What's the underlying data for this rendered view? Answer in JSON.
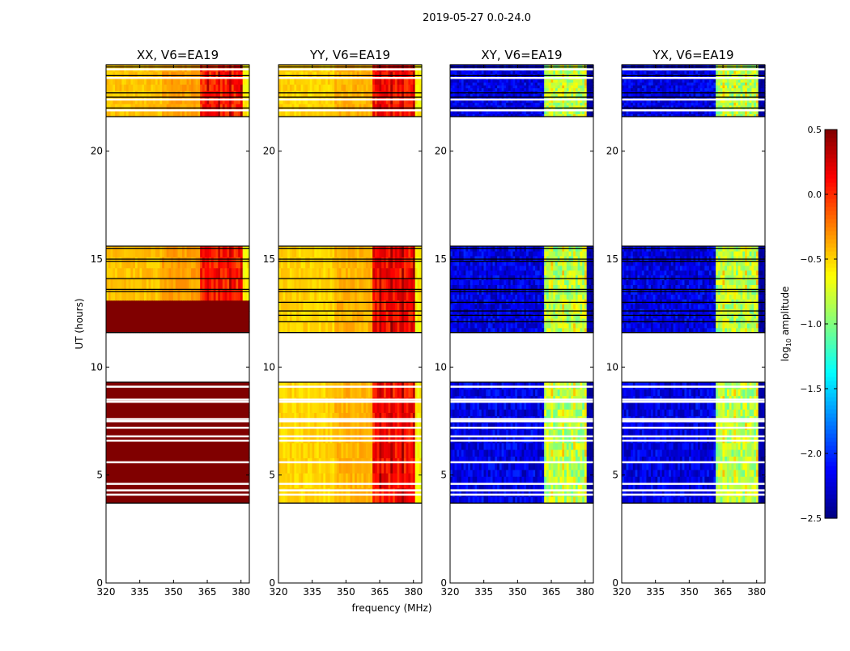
{
  "chart_data": {
    "type": "heatmap",
    "suptitle": "2019-05-27 0.0-24.0",
    "ylabel": "UT (hours)",
    "xlabel": "frequency (MHz)",
    "xlim": [
      320,
      383.7
    ],
    "ylim": [
      0,
      24
    ],
    "xticks": [
      "320",
      "335",
      "350",
      "365",
      "380"
    ],
    "xtick_values": [
      320,
      335,
      350,
      365,
      380
    ],
    "yticks": [
      "0",
      "5",
      "10",
      "15",
      "20"
    ],
    "ytick_values": [
      0,
      5,
      10,
      15,
      20
    ],
    "colorbar": {
      "label": "log10 amplitude",
      "label_main": "log",
      "label_sub": "10",
      "label_rest": " amplitude",
      "range": [
        -2.5,
        0.5
      ],
      "colormap": "jet",
      "ticks": [
        "0.5",
        "0.0",
        "−0.5",
        "−1.0",
        "−1.5",
        "−2.0",
        "−2.5"
      ],
      "tick_values": [
        0.5,
        0.0,
        -0.5,
        -1.0,
        -1.5,
        -2.0,
        -2.5
      ]
    },
    "time_blocks_hours": [
      [
        3.7,
        9.3
      ],
      [
        11.6,
        15.6
      ],
      [
        21.6,
        24.0
      ]
    ],
    "flagged_rows_hours": [
      4.1,
      4.3,
      4.6,
      5.6,
      6.6,
      6.8,
      7.2,
      7.5,
      7.6,
      8.4,
      8.5,
      9.1,
      23.8,
      23.4,
      21.9,
      22.4
    ],
    "black_rows_hours": [
      13.5,
      13.6,
      14.1,
      14.9,
      15.0,
      15.5,
      12.1,
      12.4,
      12.6,
      13.0,
      22.0,
      22.5,
      22.7,
      23.5,
      23.9
    ],
    "panels": [
      {
        "title": "XX, V6=EA19",
        "low_band_level": -0.35,
        "rfi_band_level": 0.05,
        "edge_level": -0.6,
        "saturated_blocks_hours": [
          [
            3.7,
            9.3
          ],
          [
            11.6,
            13.2
          ]
        ]
      },
      {
        "title": "YY, V6=EA19",
        "low_band_level": -0.4,
        "rfi_band_level": 0.1,
        "edge_level": -0.6,
        "saturated_blocks_hours": []
      },
      {
        "title": "XY, V6=EA19",
        "low_band_level": -2.2,
        "rfi_band_level": -0.85,
        "edge_level": -2.4,
        "saturated_blocks_hours": []
      },
      {
        "title": "YX, V6=EA19",
        "low_band_level": -2.2,
        "rfi_band_level": -0.85,
        "edge_level": -2.4,
        "saturated_blocks_hours": []
      }
    ],
    "rfi_band_mhz": [
      362,
      381
    ]
  }
}
